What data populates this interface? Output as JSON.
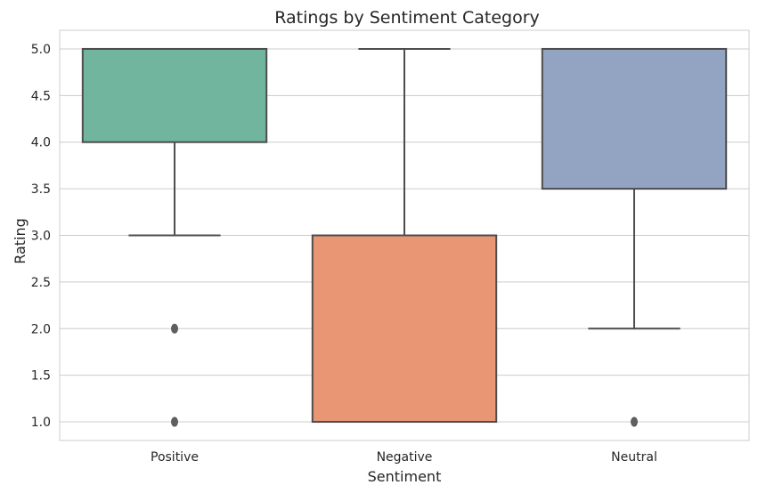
{
  "chart_data": {
    "type": "box",
    "title": "Ratings by Sentiment Category",
    "xlabel": "Sentiment",
    "ylabel": "Rating",
    "ylim": [
      0.8,
      5.2
    ],
    "yticks": [
      "1.0",
      "1.5",
      "2.0",
      "2.5",
      "3.0",
      "3.5",
      "4.0",
      "4.5",
      "5.0"
    ],
    "grid": true,
    "categories": [
      "Positive",
      "Negative",
      "Neutral"
    ],
    "boxes": [
      {
        "category": "Positive",
        "q1": 4.0,
        "median": 5.0,
        "q3": 5.0,
        "whisker_low": 3.0,
        "whisker_high": 5.0,
        "outliers": [
          2.0,
          1.0
        ],
        "color": "#72b59f"
      },
      {
        "category": "Negative",
        "q1": 1.0,
        "median": 1.0,
        "q3": 3.0,
        "whisker_low": 1.0,
        "whisker_high": 5.0,
        "outliers": [],
        "color": "#e99675"
      },
      {
        "category": "Neutral",
        "q1": 3.5,
        "median": 5.0,
        "q3": 5.0,
        "whisker_low": 2.0,
        "whisker_high": 5.0,
        "outliers": [
          1.0
        ],
        "color": "#93a4c3"
      }
    ],
    "line_color": "#4d4d4d",
    "outlier_color": "#5f5f5f"
  }
}
